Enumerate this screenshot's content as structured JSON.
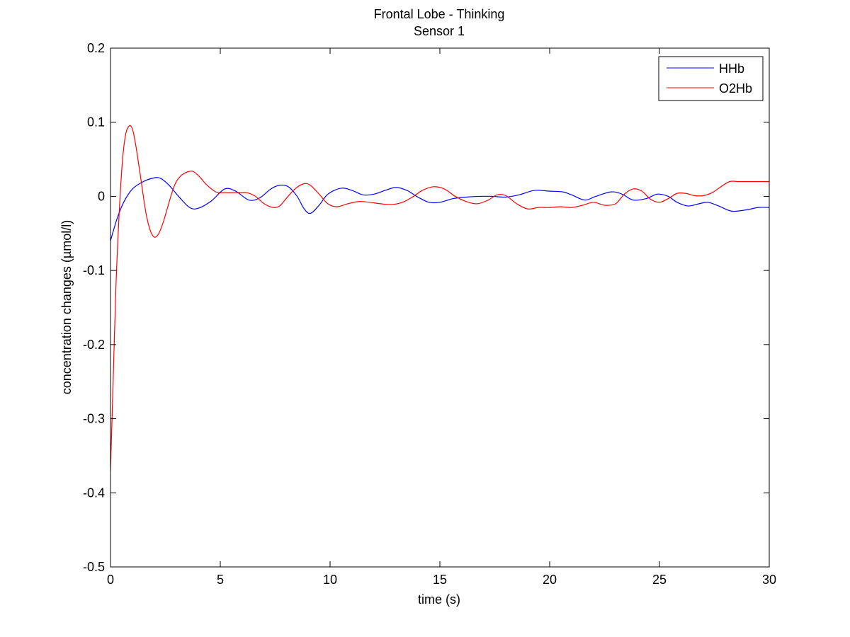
{
  "chart_data": {
    "type": "line",
    "title": "Frontal Lobe - Thinking",
    "subtitle": "Sensor 1",
    "xlabel": "time (s)",
    "ylabel": "concentration changes (µmol/l)",
    "xlim": [
      0,
      30
    ],
    "ylim": [
      -0.5,
      0.2
    ],
    "xticks": [
      0,
      5,
      10,
      15,
      20,
      25,
      30
    ],
    "yticks": [
      -0.5,
      -0.4,
      -0.3,
      -0.2,
      -0.1,
      0,
      0.1,
      0.2
    ],
    "xtick_labels": [
      "0",
      "5",
      "10",
      "15",
      "20",
      "25",
      "30"
    ],
    "ytick_labels": [
      "-0.5",
      "-0.4",
      "-0.3",
      "-0.2",
      "-0.1",
      "0",
      "0.1",
      "0.2"
    ],
    "grid": false,
    "legend_position": "top-right",
    "series": [
      {
        "name": "HHb",
        "color": "#0000ff",
        "x": [
          0,
          0.3,
          0.6,
          1.0,
          1.5,
          2.0,
          2.3,
          2.7,
          3.1,
          3.6,
          4.0,
          4.6,
          5.2,
          5.7,
          6.3,
          6.8,
          7.3,
          7.7,
          8.1,
          8.5,
          8.8,
          9.1,
          9.5,
          9.9,
          10.5,
          11.0,
          11.5,
          12.0,
          12.5,
          13.0,
          13.5,
          14.0,
          14.5,
          15.0,
          15.6,
          16.2,
          16.8,
          17.4,
          18.0,
          18.6,
          19.3,
          20.0,
          20.6,
          21.0,
          21.6,
          22.1,
          22.8,
          23.3,
          23.8,
          24.4,
          24.9,
          25.4,
          25.8,
          26.3,
          26.8,
          27.2,
          27.7,
          28.3,
          29.0,
          29.5,
          30.0
        ],
        "values": [
          -0.06,
          -0.03,
          -0.008,
          0.01,
          0.02,
          0.025,
          0.024,
          0.014,
          0.0,
          -0.015,
          -0.016,
          -0.006,
          0.01,
          0.007,
          -0.005,
          -0.002,
          0.01,
          0.015,
          0.013,
          0.0,
          -0.016,
          -0.023,
          -0.012,
          0.003,
          0.011,
          0.008,
          0.002,
          0.003,
          0.008,
          0.012,
          0.008,
          -0.001,
          -0.008,
          -0.008,
          -0.003,
          -0.001,
          0.0,
          0.0,
          -0.001,
          0.002,
          0.008,
          0.007,
          0.006,
          0.002,
          -0.005,
          0.0,
          0.006,
          0.003,
          -0.005,
          -0.003,
          0.003,
          0.0,
          -0.008,
          -0.013,
          -0.01,
          -0.008,
          -0.013,
          -0.02,
          -0.018,
          -0.015,
          -0.015
        ]
      },
      {
        "name": "O2Hb",
        "color": "#ff0000",
        "x": [
          0,
          0.12,
          0.25,
          0.4,
          0.55,
          0.7,
          0.85,
          0.95,
          1.05,
          1.2,
          1.4,
          1.6,
          1.8,
          2.0,
          2.2,
          2.4,
          2.6,
          2.8,
          3.0,
          3.3,
          3.7,
          4.0,
          4.4,
          4.8,
          5.2,
          5.7,
          6.2,
          6.6,
          7.0,
          7.4,
          7.7,
          8.0,
          8.4,
          8.8,
          9.1,
          9.5,
          9.9,
          10.3,
          10.8,
          11.3,
          11.8,
          12.3,
          12.8,
          13.3,
          13.8,
          14.2,
          14.7,
          15.2,
          15.7,
          16.2,
          16.7,
          17.2,
          17.6,
          18.0,
          18.5,
          19.0,
          19.5,
          20.0,
          20.5,
          21.0,
          21.5,
          22.0,
          22.5,
          23.0,
          23.4,
          23.8,
          24.2,
          24.6,
          25.0,
          25.4,
          25.8,
          26.2,
          26.6,
          27.0,
          27.4,
          27.8,
          28.2,
          28.6,
          29.0,
          29.5,
          30.0
        ],
        "values": [
          -0.37,
          -0.25,
          -0.12,
          -0.02,
          0.05,
          0.085,
          0.095,
          0.094,
          0.085,
          0.06,
          0.02,
          -0.02,
          -0.045,
          -0.055,
          -0.05,
          -0.035,
          -0.015,
          0.005,
          0.02,
          0.03,
          0.034,
          0.028,
          0.015,
          0.006,
          0.005,
          0.005,
          0.005,
          0.0,
          -0.01,
          -0.015,
          -0.013,
          -0.003,
          0.01,
          0.017,
          0.015,
          0.003,
          -0.01,
          -0.014,
          -0.01,
          -0.007,
          -0.008,
          -0.01,
          -0.011,
          -0.008,
          0.0,
          0.008,
          0.013,
          0.01,
          0.0,
          -0.007,
          -0.01,
          -0.005,
          0.002,
          0.001,
          -0.01,
          -0.017,
          -0.015,
          -0.015,
          -0.014,
          -0.015,
          -0.012,
          -0.008,
          -0.012,
          -0.01,
          0.003,
          0.01,
          0.007,
          -0.004,
          -0.008,
          -0.003,
          0.004,
          0.004,
          0.001,
          0.001,
          0.005,
          0.013,
          0.02,
          0.02,
          0.02,
          0.02,
          0.02
        ]
      }
    ]
  }
}
